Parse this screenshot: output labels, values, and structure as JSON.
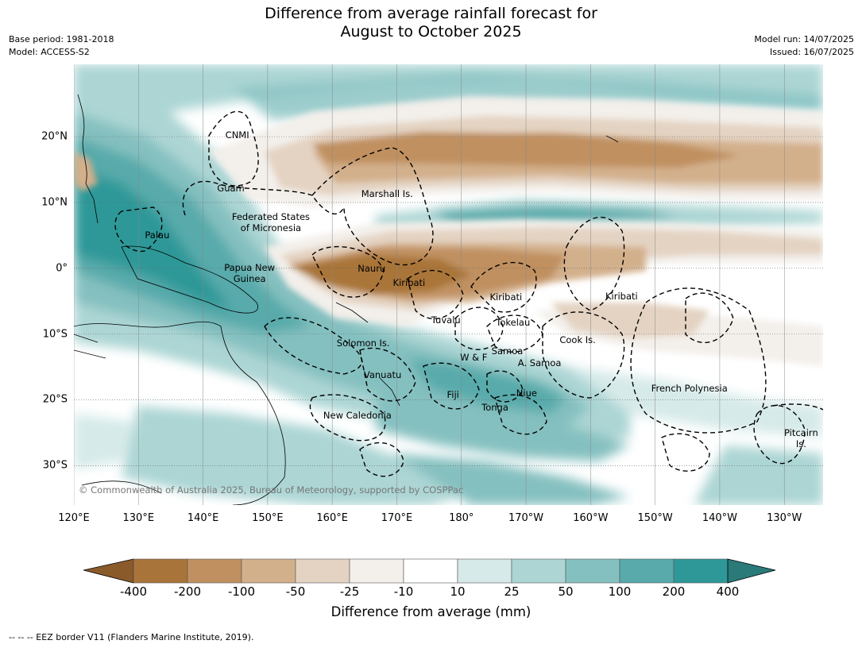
{
  "title_line1": "Difference from average rainfall forecast for",
  "title_line2": "August to October 2025",
  "meta_left": [
    "Base period: 1981-2018",
    "Model: ACCESS-S2"
  ],
  "meta_right": [
    "Model run: 14/07/2025",
    "Issued: 16/07/2025"
  ],
  "copyright": "© Commonwealth of Australia 2025, Bureau of Meteorology, supported by COSPPac",
  "footnote": "--  --  -- EEZ border V11 (Flanders Marine Institute, 2019).",
  "map": {
    "lon_range": [
      120,
      236
    ],
    "lat_range": [
      -36,
      31
    ],
    "x_ticks": [
      {
        "lon": 120,
        "label": "120°E"
      },
      {
        "lon": 130,
        "label": "130°E"
      },
      {
        "lon": 140,
        "label": "140°E"
      },
      {
        "lon": 150,
        "label": "150°E"
      },
      {
        "lon": 160,
        "label": "160°E"
      },
      {
        "lon": 170,
        "label": "170°E"
      },
      {
        "lon": 180,
        "label": "180°"
      },
      {
        "lon": 190,
        "label": "170°W"
      },
      {
        "lon": 200,
        "label": "160°W"
      },
      {
        "lon": 210,
        "label": "150°W"
      },
      {
        "lon": 220,
        "label": "140°W"
      },
      {
        "lon": 230,
        "label": "130°W"
      }
    ],
    "y_ticks": [
      {
        "lat": 20,
        "label": "20°N"
      },
      {
        "lat": 10,
        "label": "10°N"
      },
      {
        "lat": 0,
        "label": "0°"
      },
      {
        "lat": -10,
        "label": "10°S"
      },
      {
        "lat": -20,
        "label": "20°S"
      },
      {
        "lat": -30,
        "label": "30°S"
      }
    ],
    "place_labels": [
      {
        "name": "CNMI",
        "lon": 145.3,
        "lat": 20.2
      },
      {
        "name": "Guam",
        "lon": 144.3,
        "lat": 12.2
      },
      {
        "name": "Marshall Is.",
        "lon": 168.5,
        "lat": 11.3
      },
      {
        "name": "Federated States",
        "lon": 150.5,
        "lat": 7.8
      },
      {
        "name": "of Micronesia",
        "lon": 150.5,
        "lat": 6.1
      },
      {
        "name": "Palau",
        "lon": 132.9,
        "lat": 5.1
      },
      {
        "name": "Papua New",
        "lon": 147.2,
        "lat": 0.1
      },
      {
        "name": "Guinea",
        "lon": 147.2,
        "lat": -1.6
      },
      {
        "name": "Nauru",
        "lon": 166.1,
        "lat": 0.0
      },
      {
        "name": "Kiribati",
        "lon": 171.9,
        "lat": -2.2
      },
      {
        "name": "Kiribati",
        "lon": 186.9,
        "lat": -4.4
      },
      {
        "name": "Kiribati",
        "lon": 204.8,
        "lat": -4.2
      },
      {
        "name": "Tuvalu",
        "lon": 177.6,
        "lat": -7.9
      },
      {
        "name": "Tokelau",
        "lon": 188.0,
        "lat": -8.2
      },
      {
        "name": "Cook Is.",
        "lon": 198.0,
        "lat": -10.9
      },
      {
        "name": "Solomon Is.",
        "lon": 164.8,
        "lat": -11.4
      },
      {
        "name": "W & F",
        "lon": 181.9,
        "lat": -13.6
      },
      {
        "name": "Samoa",
        "lon": 187.1,
        "lat": -12.6
      },
      {
        "name": "A. Samoa",
        "lon": 192.1,
        "lat": -14.4
      },
      {
        "name": "Vanuatu",
        "lon": 167.8,
        "lat": -16.2
      },
      {
        "name": "Fiji",
        "lon": 178.7,
        "lat": -19.2
      },
      {
        "name": "Niue",
        "lon": 190.1,
        "lat": -19.0
      },
      {
        "name": "Tonga",
        "lon": 185.2,
        "lat": -21.1
      },
      {
        "name": "New Caledonia",
        "lon": 163.9,
        "lat": -22.3
      },
      {
        "name": "French Polynesia",
        "lon": 215.3,
        "lat": -18.3
      },
      {
        "name": "Pitcairn",
        "lon": 232.6,
        "lat": -25.0
      },
      {
        "name": "Is.",
        "lon": 232.6,
        "lat": -26.7
      }
    ]
  },
  "colorbar": {
    "title": "Difference from average (mm)",
    "tick_labels": [
      "-400",
      "-200",
      "-100",
      "-50",
      "-25",
      "-10",
      "10",
      "25",
      "50",
      "100",
      "200",
      "400"
    ],
    "colors": [
      "#8b5a2b",
      "#a97439",
      "#c09061",
      "#d3b08c",
      "#e4d3c2",
      "#f3efea",
      "#ffffff",
      "#d6eae9",
      "#acd5d4",
      "#85c0c0",
      "#58aaab",
      "#2e9898",
      "#2a7a7a"
    ]
  }
}
